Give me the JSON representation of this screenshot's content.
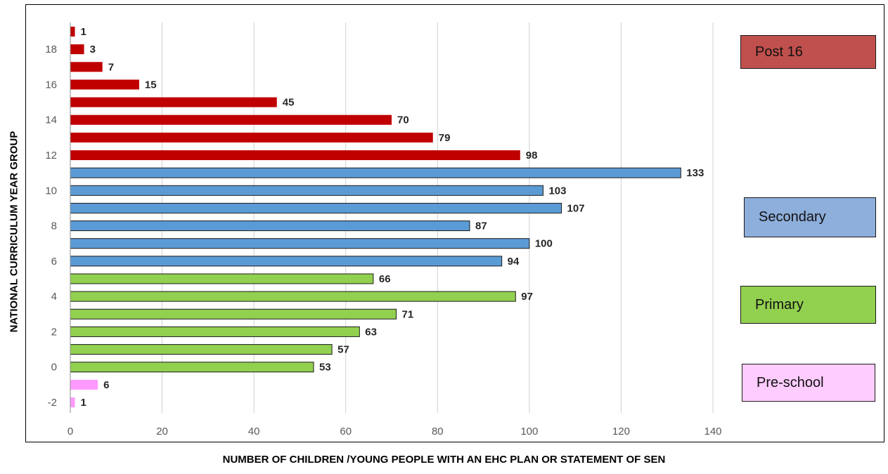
{
  "chart_data": {
    "type": "bar",
    "orientation": "horizontal",
    "xlabel": "NUMBER OF CHILDREN /YOUNG PEOPLE WITH AN EHC PLAN OR STATEMENT OF SEN",
    "ylabel": "NATIONAL CURRICULUM YEAR GROUP",
    "xlim": [
      0,
      140
    ],
    "x_ticks": [
      "0",
      "20",
      "40",
      "60",
      "80",
      "100",
      "120",
      "140"
    ],
    "y_tick_labels": [
      "-2",
      "0",
      "2",
      "4",
      "6",
      "8",
      "10",
      "12",
      "14",
      "16",
      "18"
    ],
    "categories": [
      -2,
      -1,
      0,
      1,
      2,
      3,
      4,
      5,
      6,
      7,
      8,
      9,
      10,
      11,
      12,
      13,
      14,
      15,
      16,
      17,
      18,
      19
    ],
    "values": [
      1,
      6,
      53,
      57,
      63,
      71,
      97,
      66,
      94,
      100,
      87,
      107,
      103,
      133,
      98,
      79,
      70,
      45,
      15,
      7,
      3,
      1
    ],
    "groups": [
      "Pre-school",
      "Pre-school",
      "Primary",
      "Primary",
      "Primary",
      "Primary",
      "Primary",
      "Primary",
      "Secondary",
      "Secondary",
      "Secondary",
      "Secondary",
      "Secondary",
      "Secondary",
      "Post 16",
      "Post 16",
      "Post 16",
      "Post 16",
      "Post 16",
      "Post 16",
      "Post 16",
      "Post 16"
    ],
    "grid": "vertical",
    "legend": [
      {
        "name": "Post 16",
        "color": "#c0504d"
      },
      {
        "name": "Secondary",
        "color": "#8eaedb"
      },
      {
        "name": "Primary",
        "color": "#92d050"
      },
      {
        "name": "Pre-school",
        "color": "#ffccff"
      }
    ],
    "bar_colors": {
      "Pre-school": "#ff99ff",
      "Primary": "#92d050",
      "Secondary": "#5b9bd5",
      "Post 16": "#c00000"
    }
  }
}
